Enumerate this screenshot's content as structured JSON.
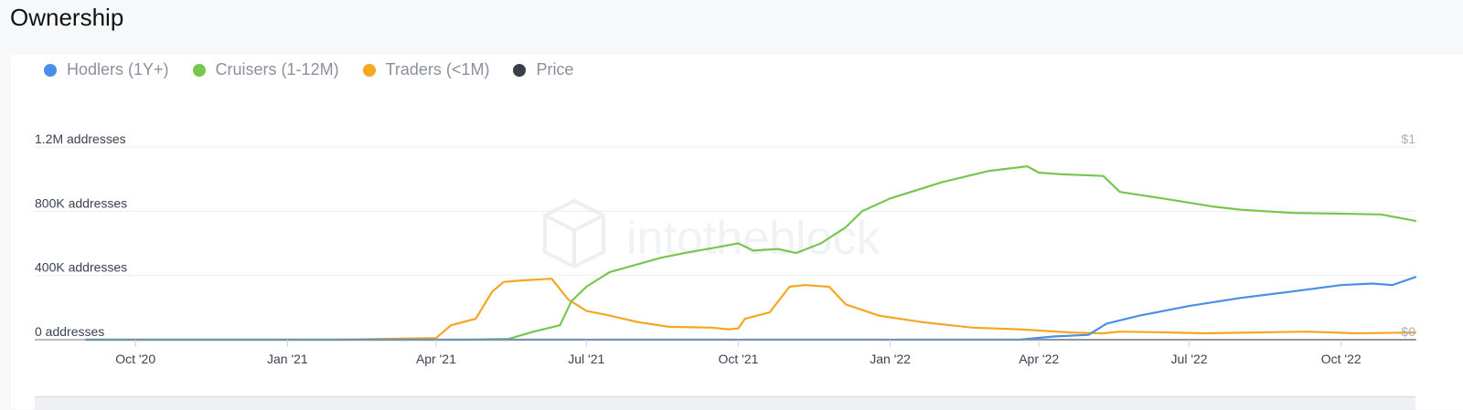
{
  "page": {
    "title": "Ownership"
  },
  "colors": {
    "hodlers": "#4a8ee6",
    "cruisers": "#79c64f",
    "traders": "#f5a623",
    "price": "#3a3f47"
  },
  "watermark": "intotheblock",
  "chart_data": {
    "type": "line",
    "title": "",
    "x_ticks": [
      "Oct '20",
      "Jan '21",
      "Apr '21",
      "Jul '21",
      "Oct '21",
      "Jan '22",
      "Apr '22",
      "Jul '22",
      "Oct '22"
    ],
    "y_ticks_left": [
      "0 addresses",
      "400K addresses",
      "800K addresses",
      "1.2M addresses"
    ],
    "y_ticks_right": [
      "$0",
      "$1"
    ],
    "ylim": [
      0,
      1200000
    ],
    "grid": true,
    "legend_position": "top-left",
    "series": [
      {
        "name": "Hodlers (1Y+)",
        "key": "hodlers",
        "points": [
          [
            "2020-09-01",
            0
          ],
          [
            "2022-03-20",
            0
          ],
          [
            "2022-04-10",
            20000
          ],
          [
            "2022-05-01",
            30000
          ],
          [
            "2022-05-12",
            100000
          ],
          [
            "2022-06-01",
            150000
          ],
          [
            "2022-07-01",
            210000
          ],
          [
            "2022-08-01",
            260000
          ],
          [
            "2022-09-01",
            300000
          ],
          [
            "2022-10-01",
            340000
          ],
          [
            "2022-10-20",
            350000
          ],
          [
            "2022-11-01",
            340000
          ],
          [
            "2022-11-15",
            390000
          ]
        ]
      },
      {
        "name": "Cruisers (1-12M)",
        "key": "cruisers",
        "points": [
          [
            "2020-09-01",
            0
          ],
          [
            "2021-04-20",
            0
          ],
          [
            "2021-05-15",
            5000
          ],
          [
            "2021-05-30",
            50000
          ],
          [
            "2021-06-15",
            90000
          ],
          [
            "2021-06-22",
            240000
          ],
          [
            "2021-07-01",
            330000
          ],
          [
            "2021-07-15",
            420000
          ],
          [
            "2021-08-01",
            470000
          ],
          [
            "2021-08-15",
            510000
          ],
          [
            "2021-09-01",
            545000
          ],
          [
            "2021-09-15",
            570000
          ],
          [
            "2021-10-01",
            600000
          ],
          [
            "2021-10-10",
            555000
          ],
          [
            "2021-10-25",
            565000
          ],
          [
            "2021-11-05",
            540000
          ],
          [
            "2021-11-20",
            600000
          ],
          [
            "2021-12-05",
            700000
          ],
          [
            "2021-12-15",
            800000
          ],
          [
            "2022-01-01",
            880000
          ],
          [
            "2022-02-01",
            980000
          ],
          [
            "2022-03-01",
            1050000
          ],
          [
            "2022-03-25",
            1080000
          ],
          [
            "2022-04-01",
            1040000
          ],
          [
            "2022-04-15",
            1030000
          ],
          [
            "2022-05-10",
            1020000
          ],
          [
            "2022-05-20",
            920000
          ],
          [
            "2022-06-15",
            880000
          ],
          [
            "2022-07-15",
            830000
          ],
          [
            "2022-08-01",
            810000
          ],
          [
            "2022-09-01",
            790000
          ],
          [
            "2022-10-01",
            785000
          ],
          [
            "2022-10-25",
            780000
          ],
          [
            "2022-11-15",
            740000
          ]
        ]
      },
      {
        "name": "Traders (<1M)",
        "key": "traders",
        "points": [
          [
            "2020-09-01",
            0
          ],
          [
            "2021-02-01",
            0
          ],
          [
            "2021-03-01",
            5000
          ],
          [
            "2021-04-01",
            10000
          ],
          [
            "2021-04-10",
            90000
          ],
          [
            "2021-04-25",
            130000
          ],
          [
            "2021-05-05",
            300000
          ],
          [
            "2021-05-12",
            360000
          ],
          [
            "2021-05-25",
            370000
          ],
          [
            "2021-06-10",
            380000
          ],
          [
            "2021-06-20",
            250000
          ],
          [
            "2021-07-01",
            180000
          ],
          [
            "2021-07-15",
            150000
          ],
          [
            "2021-08-01",
            110000
          ],
          [
            "2021-08-20",
            80000
          ],
          [
            "2021-09-15",
            75000
          ],
          [
            "2021-09-25",
            65000
          ],
          [
            "2021-10-01",
            70000
          ],
          [
            "2021-10-05",
            130000
          ],
          [
            "2021-10-20",
            170000
          ],
          [
            "2021-11-01",
            330000
          ],
          [
            "2021-11-10",
            340000
          ],
          [
            "2021-11-25",
            330000
          ],
          [
            "2021-12-05",
            220000
          ],
          [
            "2021-12-25",
            150000
          ],
          [
            "2022-01-20",
            110000
          ],
          [
            "2022-02-20",
            75000
          ],
          [
            "2022-03-20",
            65000
          ],
          [
            "2022-04-20",
            45000
          ],
          [
            "2022-05-10",
            40000
          ],
          [
            "2022-05-20",
            50000
          ],
          [
            "2022-06-20",
            45000
          ],
          [
            "2022-07-10",
            40000
          ],
          [
            "2022-08-10",
            45000
          ],
          [
            "2022-09-10",
            50000
          ],
          [
            "2022-10-10",
            40000
          ],
          [
            "2022-11-15",
            45000
          ]
        ]
      },
      {
        "name": "Price",
        "key": "price",
        "points": [
          [
            "2020-09-01",
            0
          ],
          [
            "2022-11-15",
            0
          ]
        ]
      }
    ]
  }
}
